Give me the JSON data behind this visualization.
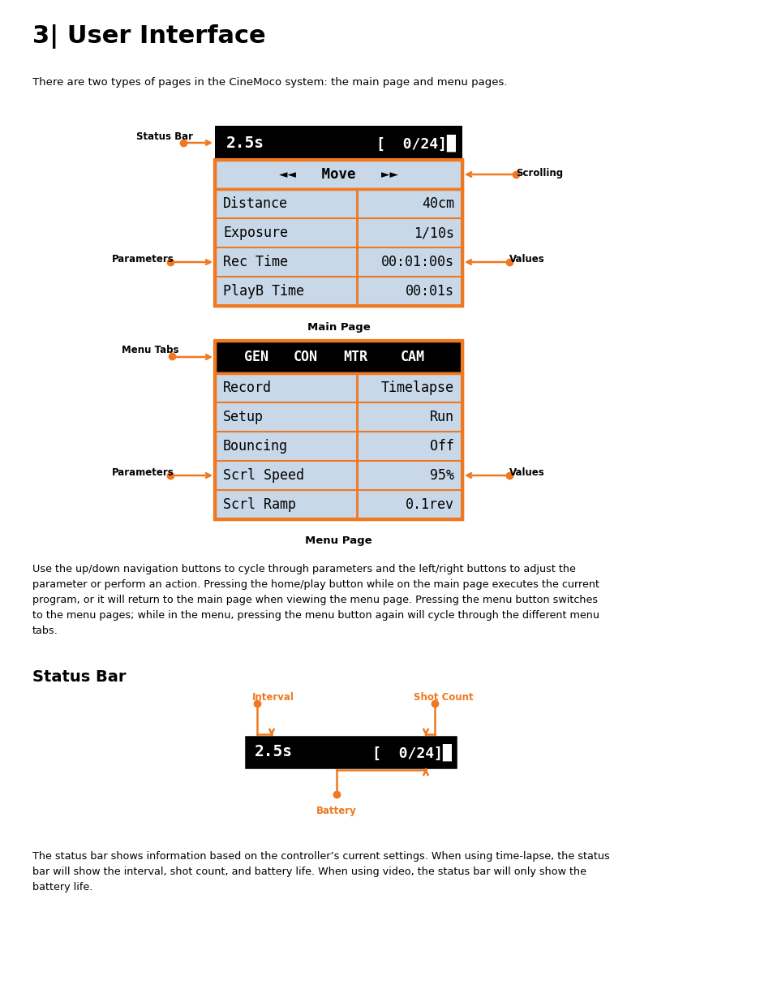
{
  "title": "3| User Interface",
  "intro_text": "There are two types of pages in the CineMoco system: the main page and menu pages.",
  "bg_color": "#ffffff",
  "orange": "#F07820",
  "black": "#000000",
  "white": "#ffffff",
  "light_blue": "#c8d8e8",
  "main_page": {
    "status_text_left": "2.5s",
    "status_text_right": "[  0/24]█",
    "scroll_text": "◄◄   Move   ►►",
    "rows": [
      [
        "Distance",
        "40cm"
      ],
      [
        "Exposure",
        "1/10s"
      ],
      [
        "Rec Time",
        "00:01:00s"
      ],
      [
        "PlayB Time",
        "00:01s"
      ]
    ],
    "label": "Main Page"
  },
  "menu_page": {
    "tab_row": [
      "GEN",
      "CON",
      "MTR",
      "CAM"
    ],
    "rows": [
      [
        "Record",
        "Timelapse"
      ],
      [
        "Setup",
        "Run"
      ],
      [
        "Bouncing",
        "Off"
      ],
      [
        "Scrl Speed",
        "95%"
      ],
      [
        "Scrl Ramp",
        "0.1rev"
      ]
    ],
    "label": "Menu Page"
  },
  "body_text1": "Use the up/down navigation buttons to cycle through parameters and the left/right buttons to adjust the\nparameter or perform an action. Pressing the home/play button while on the main page executes the current\nprogram, or it will return to the main page when viewing the menu page. Pressing the menu button switches\nto the menu pages; while in the menu, pressing the menu button again will cycle through the different menu\ntabs.",
  "status_bar_section_title": "Status Bar",
  "status_bar2_text_left": "2.5s",
  "status_bar2_text_right": "[  0/24]█",
  "body_text2": "The status bar shows information based on the controller’s current settings. When using time-lapse, the status\nbar will show the interval, shot count, and battery life. When using video, the status bar will only show the\nbattery life."
}
